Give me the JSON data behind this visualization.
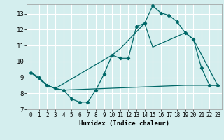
{
  "xlabel": "Humidex (Indice chaleur)",
  "ylabel": "",
  "bg_color": "#d4eeee",
  "grid_color": "#ffffff",
  "line_color": "#006868",
  "xlim": [
    -0.5,
    23.5
  ],
  "ylim": [
    7.0,
    13.6
  ],
  "yticks": [
    7,
    8,
    9,
    10,
    11,
    12,
    13
  ],
  "xticks": [
    0,
    1,
    2,
    3,
    4,
    5,
    6,
    7,
    8,
    9,
    10,
    11,
    12,
    13,
    14,
    15,
    16,
    17,
    18,
    19,
    20,
    21,
    22,
    23
  ],
  "line1_x": [
    0,
    1,
    2,
    3,
    4,
    5,
    6,
    7,
    8,
    9,
    10,
    11,
    12,
    13,
    14,
    15,
    16,
    17,
    18,
    19,
    20,
    21,
    22,
    23
  ],
  "line1_y": [
    9.3,
    9.0,
    8.5,
    8.3,
    8.2,
    7.65,
    7.45,
    7.45,
    8.2,
    9.2,
    10.4,
    10.2,
    10.2,
    12.2,
    12.4,
    13.5,
    13.05,
    12.9,
    12.5,
    11.8,
    11.4,
    9.6,
    8.5,
    8.5
  ],
  "line2_x": [
    0,
    2,
    3,
    10,
    11,
    14,
    15,
    19,
    20,
    23
  ],
  "line2_y": [
    9.3,
    8.5,
    8.3,
    10.4,
    10.8,
    12.4,
    10.9,
    11.8,
    11.4,
    8.5
  ],
  "line3_x": [
    0,
    2,
    3,
    4,
    19,
    23
  ],
  "line3_y": [
    9.3,
    8.5,
    8.3,
    8.2,
    8.5,
    8.5
  ]
}
